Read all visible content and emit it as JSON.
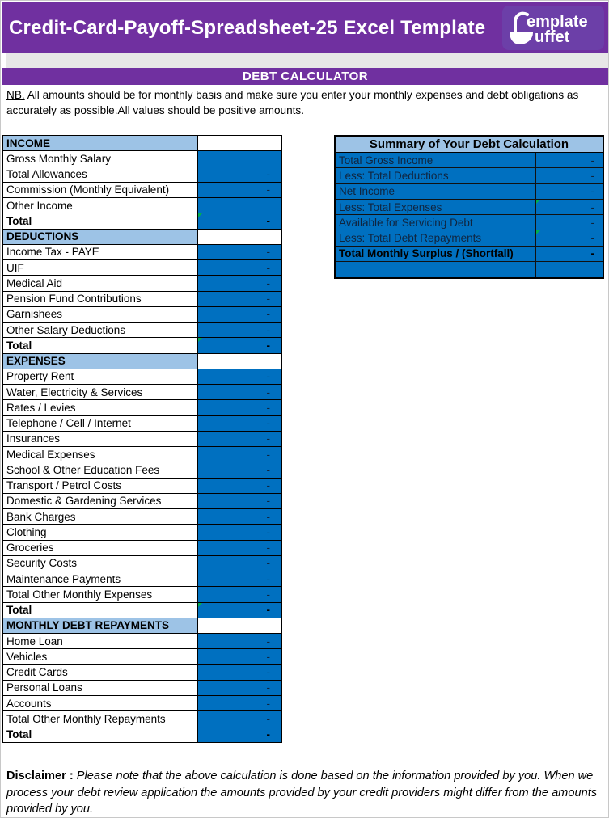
{
  "page": {
    "title": "Credit-Card-Payoff-Spreadsheet-25 Excel Template",
    "subtitle": "DEBT CALCULATOR",
    "logo": {
      "line1": "emplate",
      "line2": "uffet"
    },
    "note_label": "NB.",
    "note_text": " All amounts should be for monthly basis and make sure you enter your monthly expenses and debt obligations as accurately as possible.All values should be positive amounts.",
    "disclaimer_label": "Disclaimer :",
    "disclaimer_text": "  Please note that the above calculation is done based on the information provided by you. When we process your debt review application the amounts provided by your credit providers might differ from the amounts provided by you."
  },
  "colors": {
    "banner_purple": "#7030A0",
    "logo_purple": "#6C3FA8",
    "band_gray": "#E7E7E7",
    "section_header_blue": "#9DC3E6",
    "cell_blue": "#0070C0",
    "marker_green": "#00B050",
    "dash_text": "#0F243E"
  },
  "left_table": {
    "sections": [
      {
        "id": "income",
        "title": "INCOME",
        "rows": [
          {
            "label": "Gross Monthly Salary",
            "value": "",
            "bold": false,
            "marker": false
          },
          {
            "label": "Total Allowances",
            "value": "-",
            "bold": false,
            "marker": false
          },
          {
            "label": "Commission (Monthly Equivalent)",
            "value": "-",
            "bold": false,
            "marker": false
          },
          {
            "label": "Other Income",
            "value": "",
            "bold": false,
            "marker": false
          },
          {
            "label": "Total",
            "value": "-",
            "bold": true,
            "marker": true
          }
        ]
      },
      {
        "id": "deductions",
        "title": "DEDUCTIONS",
        "rows": [
          {
            "label": "Income Tax - PAYE",
            "value": "-",
            "bold": false,
            "marker": false
          },
          {
            "label": "UIF",
            "value": "-",
            "bold": false,
            "marker": false
          },
          {
            "label": "Medical Aid",
            "value": "-",
            "bold": false,
            "marker": false
          },
          {
            "label": "Pension Fund Contributions",
            "value": "-",
            "bold": false,
            "marker": false
          },
          {
            "label": "Garnishees",
            "value": "-",
            "bold": false,
            "marker": false
          },
          {
            "label": "Other Salary Deductions",
            "value": "-",
            "bold": false,
            "marker": false
          },
          {
            "label": "Total",
            "value": "-",
            "bold": true,
            "marker": true
          }
        ]
      },
      {
        "id": "expenses",
        "title": "EXPENSES",
        "rows": [
          {
            "label": "Property Rent",
            "value": "-",
            "bold": false,
            "marker": false
          },
          {
            "label": "Water, Electricity & Services",
            "value": "-",
            "bold": false,
            "marker": false
          },
          {
            "label": "Rates / Levies",
            "value": "-",
            "bold": false,
            "marker": false
          },
          {
            "label": "Telephone / Cell / Internet",
            "value": "-",
            "bold": false,
            "marker": false
          },
          {
            "label": "Insurances",
            "value": "-",
            "bold": false,
            "marker": false
          },
          {
            "label": "Medical Expenses",
            "value": "-",
            "bold": false,
            "marker": false
          },
          {
            "label": "School & Other Education Fees",
            "value": "-",
            "bold": false,
            "marker": false
          },
          {
            "label": "Transport / Petrol Costs",
            "value": "-",
            "bold": false,
            "marker": false
          },
          {
            "label": "Domestic & Gardening Services",
            "value": "-",
            "bold": false,
            "marker": false
          },
          {
            "label": "Bank Charges",
            "value": "-",
            "bold": false,
            "marker": false
          },
          {
            "label": "Clothing",
            "value": "-",
            "bold": false,
            "marker": false
          },
          {
            "label": "Groceries",
            "value": "-",
            "bold": false,
            "marker": false
          },
          {
            "label": "Security Costs",
            "value": "-",
            "bold": false,
            "marker": false
          },
          {
            "label": "Maintenance Payments",
            "value": "-",
            "bold": false,
            "marker": false
          },
          {
            "label": "Total Other Monthly Expenses",
            "value": "-",
            "bold": false,
            "marker": false
          },
          {
            "label": "Total",
            "value": "-",
            "bold": true,
            "marker": true
          }
        ]
      },
      {
        "id": "monthly-debt-repayments",
        "title": "MONTHLY DEBT REPAYMENTS",
        "rows": [
          {
            "label": "Home Loan",
            "value": "-",
            "bold": false,
            "marker": false
          },
          {
            "label": "Vehicles",
            "value": "-",
            "bold": false,
            "marker": false
          },
          {
            "label": "Credit Cards",
            "value": "-",
            "bold": false,
            "marker": false
          },
          {
            "label": "Personal Loans",
            "value": "-",
            "bold": false,
            "marker": false
          },
          {
            "label": "Accounts",
            "value": "-",
            "bold": false,
            "marker": false
          },
          {
            "label": "Total Other Monthly Repayments",
            "value": "-",
            "bold": false,
            "marker": false
          },
          {
            "label": "Total",
            "value": "-",
            "bold": true,
            "marker": false
          }
        ]
      }
    ]
  },
  "summary_table": {
    "title": "Summary of Your Debt Calculation",
    "rows": [
      {
        "label": "Total Gross Income",
        "value": "-",
        "bold": false,
        "marker": false
      },
      {
        "label": "Less: Total Deductions",
        "value": "-",
        "bold": false,
        "marker": false
      },
      {
        "label": "Net Income",
        "value": "-",
        "bold": false,
        "marker": false
      },
      {
        "label": "Less: Total Expenses",
        "value": "-",
        "bold": false,
        "marker": true
      },
      {
        "label": "Available for Servicing Debt",
        "value": "-",
        "bold": false,
        "marker": false
      },
      {
        "label": "Less: Total Debt Repayments",
        "value": "-",
        "bold": false,
        "marker": true
      },
      {
        "label": "Total Monthly Surplus / (Shortfall)",
        "value": "-",
        "bold": true,
        "marker": false
      },
      {
        "label": "",
        "value": "",
        "bold": false,
        "marker": false
      }
    ]
  }
}
